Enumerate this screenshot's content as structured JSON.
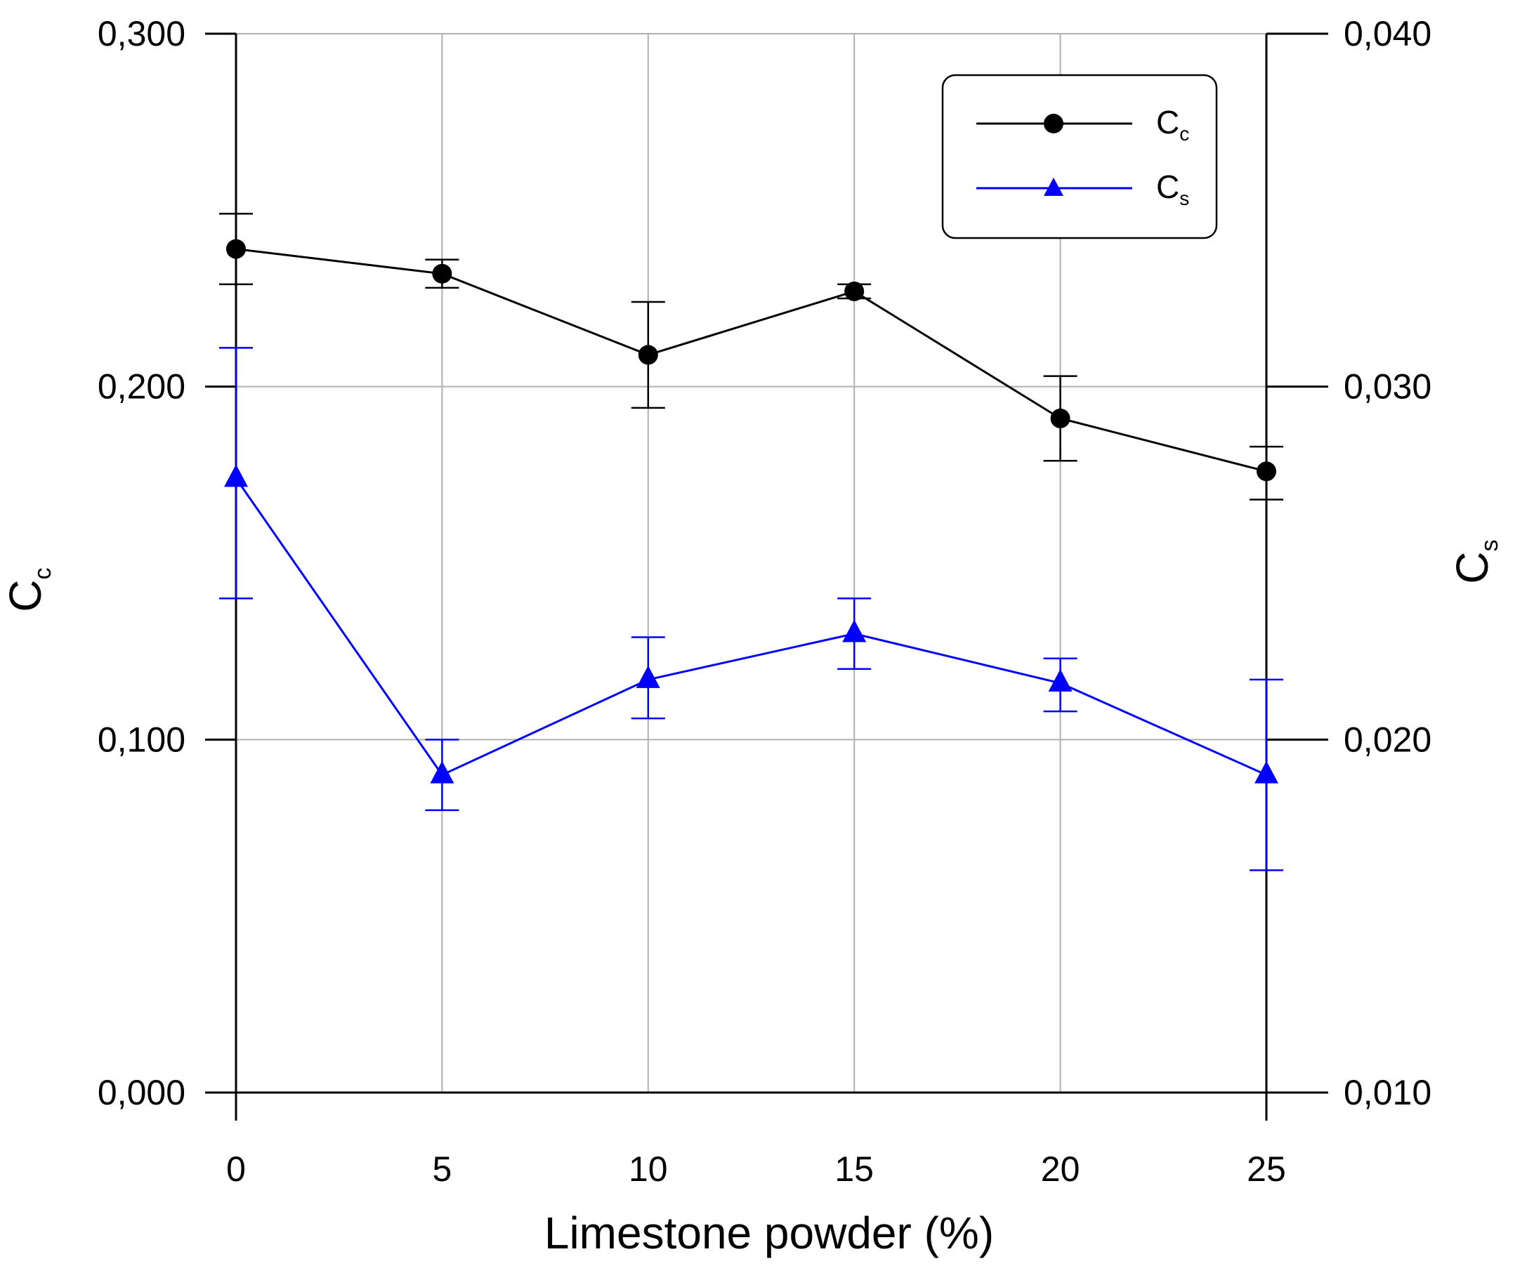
{
  "chart_data": {
    "type": "line",
    "x": [
      0,
      5,
      10,
      15,
      20,
      25
    ],
    "xlabel": "Limestone powder (%)",
    "xlim": [
      -0.75,
      26.5
    ],
    "xticks": [
      "0",
      "5",
      "10",
      "15",
      "20",
      "25"
    ],
    "left_axis": {
      "label_main": "C",
      "label_sub": "c",
      "ylim": [
        0.0,
        0.3
      ],
      "ticks": [
        0.0,
        0.1,
        0.2,
        0.3
      ],
      "tick_labels": [
        "0,000",
        "0,100",
        "0,200",
        "0,300"
      ]
    },
    "right_axis": {
      "label_main": "C",
      "label_sub": "s",
      "ylim": [
        0.01,
        0.04
      ],
      "ticks": [
        0.01,
        0.02,
        0.03,
        0.04
      ],
      "tick_labels": [
        "0,010",
        "0,020",
        "0,030",
        "0,040"
      ]
    },
    "grid": true,
    "legend_position": "top-right",
    "series": [
      {
        "name": "C",
        "name_sub": "c",
        "axis": "left",
        "color": "#000000",
        "marker": "circle",
        "values": [
          0.239,
          0.232,
          0.209,
          0.227,
          0.191,
          0.176
        ],
        "err_upper": [
          0.249,
          0.236,
          0.224,
          0.229,
          0.203,
          0.183
        ],
        "err_lower": [
          0.229,
          0.228,
          0.194,
          0.225,
          0.179,
          0.168
        ]
      },
      {
        "name": "C",
        "name_sub": "s",
        "axis": "right",
        "color": "#0000ff",
        "marker": "triangle",
        "values": [
          0.0274,
          0.019,
          0.0217,
          0.023,
          0.0216,
          0.019
        ],
        "err_upper": [
          0.0311,
          0.02,
          0.0229,
          0.024,
          0.0223,
          0.0217
        ],
        "err_lower": [
          0.024,
          0.018,
          0.0206,
          0.022,
          0.0208,
          0.0163
        ]
      }
    ]
  }
}
